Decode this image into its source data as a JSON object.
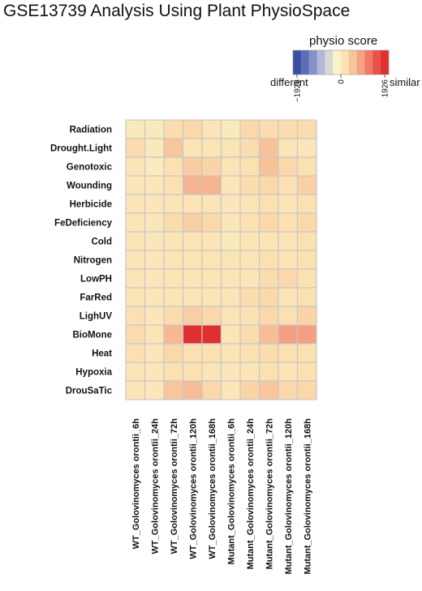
{
  "chart_data": {
    "type": "heatmap",
    "title": "GSE13739 Analysis Using Plant PhysioSpace",
    "legend": {
      "title": "physio score",
      "left_label": "different",
      "right_label": "similar",
      "ticks": [
        "−1926",
        "0",
        "1926"
      ],
      "min": -1926,
      "max": 1926,
      "colors": [
        "#3b4ea0",
        "#5c6fb6",
        "#8592c9",
        "#b2b8d8",
        "#d9d8cf",
        "#f8f3c8",
        "#fbe3b3",
        "#f8c49b",
        "#f4a283",
        "#ef7a66",
        "#e9514b",
        "#e02f2f"
      ]
    },
    "rows": [
      "Radiation",
      "Drought.Light",
      "Genotoxic",
      "Wounding",
      "Herbicide",
      "FeDeficiency",
      "Cold",
      "Nitrogen",
      "LowPH",
      "FarRed",
      "LighUV",
      "BioMone",
      "Heat",
      "Hypoxia",
      "DrouSaTic"
    ],
    "columns": [
      "WT_Golovinomyces orontii_6h",
      "WT_Golovinomyces orontii_24h",
      "WT_Golovinomyces orontii_72h",
      "WT_Golovinomyces orontii_120h",
      "WT_Golovinomyces orontii_168h",
      "Mutant_Golovinomyces orontii_6h",
      "Mutant_Golovinomyces orontii_24h",
      "Mutant_Golovinomyces orontii_72h",
      "Mutant_Golovinomyces orontii_120h",
      "Mutant_Golovinomyces orontii_168h"
    ],
    "values": [
      [
        50,
        50,
        250,
        300,
        150,
        50,
        300,
        250,
        250,
        250
      ],
      [
        250,
        50,
        500,
        150,
        150,
        150,
        250,
        550,
        150,
        100
      ],
      [
        150,
        20,
        200,
        450,
        350,
        150,
        200,
        550,
        300,
        200
      ],
      [
        100,
        100,
        200,
        700,
        700,
        100,
        250,
        300,
        200,
        400
      ],
      [
        100,
        100,
        150,
        150,
        150,
        100,
        150,
        200,
        150,
        200
      ],
      [
        150,
        100,
        250,
        400,
        300,
        100,
        200,
        300,
        200,
        300
      ],
      [
        150,
        100,
        150,
        150,
        150,
        50,
        150,
        150,
        150,
        200
      ],
      [
        100,
        100,
        150,
        150,
        150,
        150,
        150,
        200,
        150,
        200
      ],
      [
        150,
        100,
        150,
        150,
        150,
        150,
        150,
        250,
        300,
        200
      ],
      [
        150,
        100,
        150,
        150,
        150,
        150,
        250,
        300,
        150,
        200
      ],
      [
        200,
        100,
        250,
        400,
        300,
        150,
        200,
        300,
        200,
        350
      ],
      [
        250,
        150,
        650,
        1926,
        1926,
        150,
        250,
        600,
        900,
        900
      ],
      [
        200,
        100,
        300,
        200,
        200,
        150,
        200,
        250,
        200,
        200
      ],
      [
        150,
        100,
        200,
        200,
        150,
        100,
        150,
        200,
        150,
        200
      ],
      [
        150,
        100,
        500,
        600,
        300,
        100,
        350,
        500,
        300,
        300
      ]
    ]
  }
}
